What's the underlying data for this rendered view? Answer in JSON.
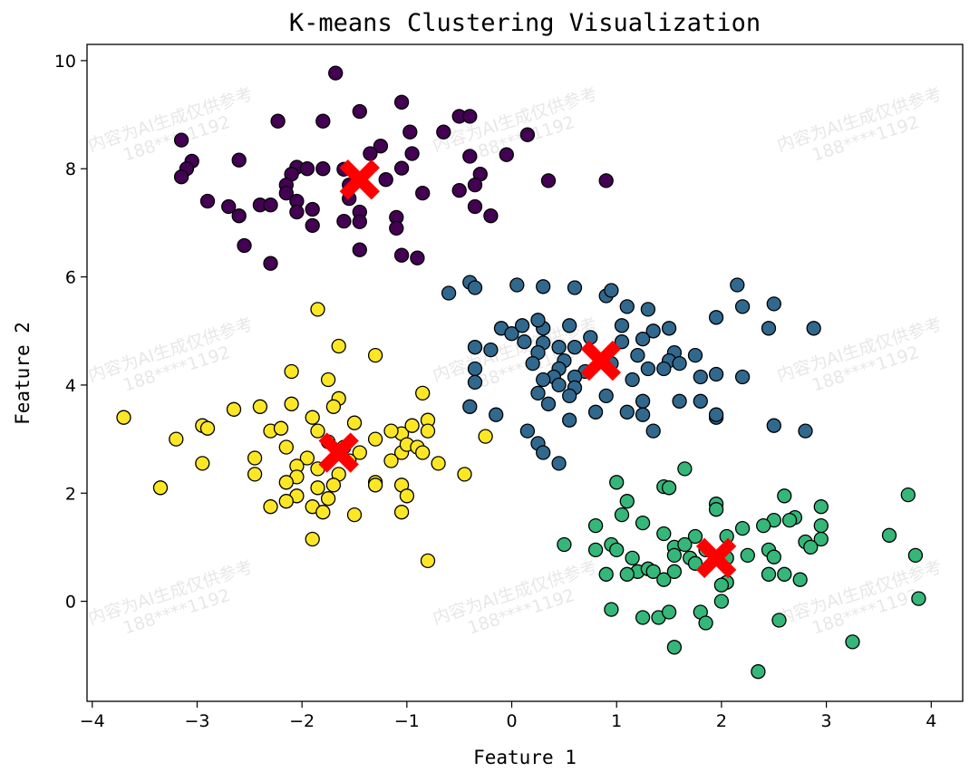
{
  "chart_data": {
    "type": "scatter",
    "title": "K-means Clustering Visualization",
    "xlabel": "Feature 1",
    "ylabel": "Feature 2",
    "xlim": [
      -4.05,
      4.3
    ],
    "ylim": [
      -1.85,
      10.3
    ],
    "xticks": [
      -4,
      -3,
      -2,
      -1,
      0,
      1,
      2,
      3,
      4
    ],
    "yticks": [
      0,
      2,
      4,
      6,
      8,
      10
    ],
    "grid": false,
    "legend": "none",
    "colors": {
      "cluster_0": "#440154",
      "cluster_1": "#31688e",
      "cluster_2": "#35b779",
      "cluster_3": "#fde725",
      "centroid": "#ff0000",
      "edge": "#000000"
    },
    "series": [
      {
        "cluster": "cluster_0",
        "points": [
          [
            -1.68,
            9.77
          ],
          [
            -1.05,
            9.23
          ],
          [
            -1.45,
            9.06
          ],
          [
            -0.5,
            8.97
          ],
          [
            -0.4,
            8.97
          ],
          [
            -2.23,
            8.88
          ],
          [
            -1.8,
            8.88
          ],
          [
            -0.97,
            8.68
          ],
          [
            -0.65,
            8.68
          ],
          [
            -1.25,
            8.42
          ],
          [
            -3.15,
            8.53
          ],
          [
            -1.35,
            8.28
          ],
          [
            -0.95,
            8.28
          ],
          [
            0.15,
            8.63
          ],
          [
            -2.6,
            8.16
          ],
          [
            -3.05,
            8.14
          ],
          [
            -3.1,
            8.0
          ],
          [
            -2.05,
            8.03
          ],
          [
            -1.95,
            8.0
          ],
          [
            -1.8,
            8.0
          ],
          [
            -1.6,
            7.99
          ],
          [
            -1.05,
            8.01
          ],
          [
            -0.4,
            8.23
          ],
          [
            -0.05,
            8.26
          ],
          [
            -2.1,
            7.9
          ],
          [
            -1.2,
            7.8
          ],
          [
            -0.3,
            7.9
          ],
          [
            -3.15,
            7.85
          ],
          [
            -2.15,
            7.7
          ],
          [
            -1.55,
            7.7
          ],
          [
            -0.85,
            7.55
          ],
          [
            -0.5,
            7.6
          ],
          [
            -0.35,
            7.7
          ],
          [
            0.35,
            7.78
          ],
          [
            0.9,
            7.78
          ],
          [
            -2.15,
            7.55
          ],
          [
            -2.05,
            7.4
          ],
          [
            -1.55,
            7.45
          ],
          [
            -2.9,
            7.4
          ],
          [
            -2.7,
            7.3
          ],
          [
            -2.4,
            7.33
          ],
          [
            -2.3,
            7.33
          ],
          [
            -1.9,
            7.25
          ],
          [
            -2.05,
            7.2
          ],
          [
            -1.45,
            7.2
          ],
          [
            -1.1,
            7.1
          ],
          [
            -0.35,
            7.3
          ],
          [
            -0.2,
            7.13
          ],
          [
            -2.6,
            7.13
          ],
          [
            -1.6,
            7.03
          ],
          [
            -1.45,
            7.02
          ],
          [
            -1.9,
            6.95
          ],
          [
            -1.1,
            6.9
          ],
          [
            -2.55,
            6.58
          ],
          [
            -1.45,
            6.5
          ],
          [
            -1.05,
            6.4
          ],
          [
            -0.9,
            6.35
          ],
          [
            -2.3,
            6.25
          ]
        ]
      },
      {
        "cluster": "cluster_1",
        "points": [
          [
            -0.6,
            5.7
          ],
          [
            -0.4,
            5.9
          ],
          [
            0.05,
            5.85
          ],
          [
            0.3,
            5.82
          ],
          [
            0.6,
            5.8
          ],
          [
            0.9,
            5.65
          ],
          [
            0.95,
            5.75
          ],
          [
            2.15,
            5.85
          ],
          [
            -0.35,
            5.8
          ],
          [
            1.1,
            5.45
          ],
          [
            1.3,
            5.4
          ],
          [
            2.2,
            5.45
          ],
          [
            2.5,
            5.5
          ],
          [
            0.3,
            5.05
          ],
          [
            1.95,
            5.25
          ],
          [
            1.05,
            5.1
          ],
          [
            1.35,
            5.0
          ],
          [
            -0.1,
            5.05
          ],
          [
            0.0,
            4.95
          ],
          [
            0.1,
            5.1
          ],
          [
            0.25,
            5.2
          ],
          [
            0.55,
            5.1
          ],
          [
            0.75,
            4.88
          ],
          [
            0.6,
            4.7
          ],
          [
            1.5,
            5.05
          ],
          [
            2.45,
            5.05
          ],
          [
            2.88,
            5.05
          ],
          [
            1.25,
            4.85
          ],
          [
            1.05,
            4.8
          ],
          [
            0.3,
            4.78
          ],
          [
            0.45,
            4.7
          ],
          [
            0.25,
            4.6
          ],
          [
            -0.35,
            4.7
          ],
          [
            -0.2,
            4.65
          ],
          [
            0.12,
            4.8
          ],
          [
            1.55,
            4.6
          ],
          [
            1.75,
            4.55
          ],
          [
            1.2,
            4.55
          ],
          [
            0.5,
            4.45
          ],
          [
            1.5,
            4.45
          ],
          [
            0.2,
            4.4
          ],
          [
            1.45,
            4.3
          ],
          [
            1.3,
            4.3
          ],
          [
            0.45,
            4.3
          ],
          [
            -0.35,
            4.3
          ],
          [
            0.7,
            4.25
          ],
          [
            0.6,
            4.15
          ],
          [
            0.95,
            4.4
          ],
          [
            1.6,
            4.4
          ],
          [
            1.8,
            4.15
          ],
          [
            1.95,
            4.2
          ],
          [
            2.2,
            4.15
          ],
          [
            0.4,
            4.15
          ],
          [
            -0.35,
            4.05
          ],
          [
            0.3,
            4.1
          ],
          [
            0.45,
            4.0
          ],
          [
            0.6,
            3.95
          ],
          [
            1.15,
            4.1
          ],
          [
            -0.4,
            3.6
          ],
          [
            0.25,
            3.85
          ],
          [
            0.55,
            3.8
          ],
          [
            0.9,
            3.8
          ],
          [
            1.25,
            3.7
          ],
          [
            1.6,
            3.7
          ],
          [
            1.8,
            3.7
          ],
          [
            0.35,
            3.65
          ],
          [
            0.8,
            3.5
          ],
          [
            1.1,
            3.5
          ],
          [
            1.25,
            3.45
          ],
          [
            -0.15,
            3.45
          ],
          [
            0.55,
            3.35
          ],
          [
            1.95,
            3.4
          ],
          [
            2.5,
            3.25
          ],
          [
            2.8,
            3.15
          ],
          [
            1.35,
            3.15
          ],
          [
            0.15,
            3.15
          ],
          [
            1.95,
            3.45
          ],
          [
            0.25,
            2.92
          ],
          [
            0.3,
            2.75
          ],
          [
            0.45,
            2.55
          ]
        ]
      },
      {
        "cluster": "cluster_2",
        "points": [
          [
            1.65,
            2.45
          ],
          [
            1.0,
            2.2
          ],
          [
            1.45,
            2.12
          ],
          [
            1.5,
            2.1
          ],
          [
            1.1,
            1.85
          ],
          [
            1.95,
            1.8
          ],
          [
            2.6,
            1.95
          ],
          [
            1.95,
            1.7
          ],
          [
            2.95,
            1.75
          ],
          [
            3.78,
            1.97
          ],
          [
            1.05,
            1.6
          ],
          [
            1.25,
            1.45
          ],
          [
            2.5,
            1.5
          ],
          [
            2.7,
            1.55
          ],
          [
            2.2,
            1.35
          ],
          [
            2.4,
            1.4
          ],
          [
            2.95,
            1.4
          ],
          [
            2.65,
            1.5
          ],
          [
            0.8,
            1.4
          ],
          [
            1.45,
            1.25
          ],
          [
            1.75,
            1.2
          ],
          [
            2.05,
            1.2
          ],
          [
            3.6,
            1.22
          ],
          [
            2.8,
            1.1
          ],
          [
            2.95,
            1.15
          ],
          [
            0.5,
            1.05
          ],
          [
            0.95,
            1.05
          ],
          [
            1.55,
            1.0
          ],
          [
            1.65,
            1.05
          ],
          [
            1.85,
            0.95
          ],
          [
            2.45,
            0.95
          ],
          [
            2.85,
            1.0
          ],
          [
            3.85,
            0.85
          ],
          [
            1.15,
            0.8
          ],
          [
            1.55,
            0.85
          ],
          [
            1.7,
            0.8
          ],
          [
            1.75,
            0.7
          ],
          [
            2.05,
            0.8
          ],
          [
            2.5,
            0.82
          ],
          [
            2.25,
            0.85
          ],
          [
            0.8,
            0.95
          ],
          [
            1.0,
            0.95
          ],
          [
            1.2,
            0.55
          ],
          [
            1.1,
            0.5
          ],
          [
            0.9,
            0.5
          ],
          [
            1.3,
            0.6
          ],
          [
            1.35,
            0.55
          ],
          [
            1.45,
            0.4
          ],
          [
            1.55,
            0.55
          ],
          [
            2.45,
            0.5
          ],
          [
            2.6,
            0.5
          ],
          [
            2.75,
            0.4
          ],
          [
            2.05,
            0.35
          ],
          [
            2.0,
            0.3
          ],
          [
            3.88,
            0.05
          ],
          [
            2.0,
            0.0
          ],
          [
            0.95,
            -0.15
          ],
          [
            1.25,
            -0.3
          ],
          [
            1.4,
            -0.3
          ],
          [
            1.5,
            -0.2
          ],
          [
            1.8,
            -0.2
          ],
          [
            1.85,
            -0.4
          ],
          [
            2.55,
            -0.35
          ],
          [
            1.55,
            -0.85
          ],
          [
            3.25,
            -0.75
          ],
          [
            2.35,
            -1.3
          ]
        ]
      },
      {
        "cluster": "cluster_3",
        "points": [
          [
            -1.85,
            5.4
          ],
          [
            -1.65,
            4.72
          ],
          [
            -1.3,
            4.55
          ],
          [
            -2.1,
            4.25
          ],
          [
            -1.75,
            4.1
          ],
          [
            -0.85,
            3.85
          ],
          [
            -1.65,
            3.75
          ],
          [
            -2.4,
            3.6
          ],
          [
            -1.7,
            3.6
          ],
          [
            -2.1,
            3.65
          ],
          [
            -2.65,
            3.55
          ],
          [
            -3.7,
            3.4
          ],
          [
            -1.9,
            3.4
          ],
          [
            -0.8,
            3.35
          ],
          [
            -2.3,
            3.15
          ],
          [
            -2.2,
            3.2
          ],
          [
            -1.5,
            3.3
          ],
          [
            -2.95,
            3.25
          ],
          [
            -2.9,
            3.2
          ],
          [
            -1.85,
            3.15
          ],
          [
            -1.05,
            3.1
          ],
          [
            -0.95,
            3.25
          ],
          [
            -0.8,
            3.15
          ],
          [
            -3.2,
            3.0
          ],
          [
            -1.75,
            2.95
          ],
          [
            -1.15,
            3.15
          ],
          [
            -1.3,
            3.0
          ],
          [
            -1.6,
            2.85
          ],
          [
            -1.45,
            2.75
          ],
          [
            -2.15,
            2.85
          ],
          [
            -1.05,
            2.75
          ],
          [
            -1.0,
            2.9
          ],
          [
            -0.9,
            2.85
          ],
          [
            -0.85,
            2.75
          ],
          [
            -0.25,
            3.05
          ],
          [
            -2.45,
            2.65
          ],
          [
            -1.95,
            2.65
          ],
          [
            -1.55,
            2.6
          ],
          [
            -1.15,
            2.6
          ],
          [
            -0.7,
            2.55
          ],
          [
            -2.95,
            2.55
          ],
          [
            -2.05,
            2.5
          ],
          [
            -1.85,
            2.45
          ],
          [
            -1.65,
            2.35
          ],
          [
            -2.45,
            2.35
          ],
          [
            -2.05,
            2.3
          ],
          [
            -1.7,
            2.15
          ],
          [
            -1.3,
            2.2
          ],
          [
            -0.45,
            2.35
          ],
          [
            -2.15,
            2.2
          ],
          [
            -1.05,
            2.15
          ],
          [
            -1.3,
            2.15
          ],
          [
            -1.85,
            2.1
          ],
          [
            -3.35,
            2.1
          ],
          [
            -2.05,
            1.95
          ],
          [
            -1.75,
            1.9
          ],
          [
            -2.15,
            1.85
          ],
          [
            -1.0,
            1.95
          ],
          [
            -2.3,
            1.75
          ],
          [
            -1.9,
            1.75
          ],
          [
            -1.8,
            1.65
          ],
          [
            -1.5,
            1.6
          ],
          [
            -1.05,
            1.65
          ],
          [
            -1.9,
            1.15
          ],
          [
            -0.8,
            0.75
          ]
        ]
      }
    ],
    "centroids": [
      [
        -1.45,
        7.8
      ],
      [
        0.85,
        4.45
      ],
      [
        1.95,
        0.8
      ],
      [
        -1.65,
        2.75
      ]
    ],
    "annotations": [
      "内容为AI生成仅供参考",
      "188****1192"
    ]
  }
}
